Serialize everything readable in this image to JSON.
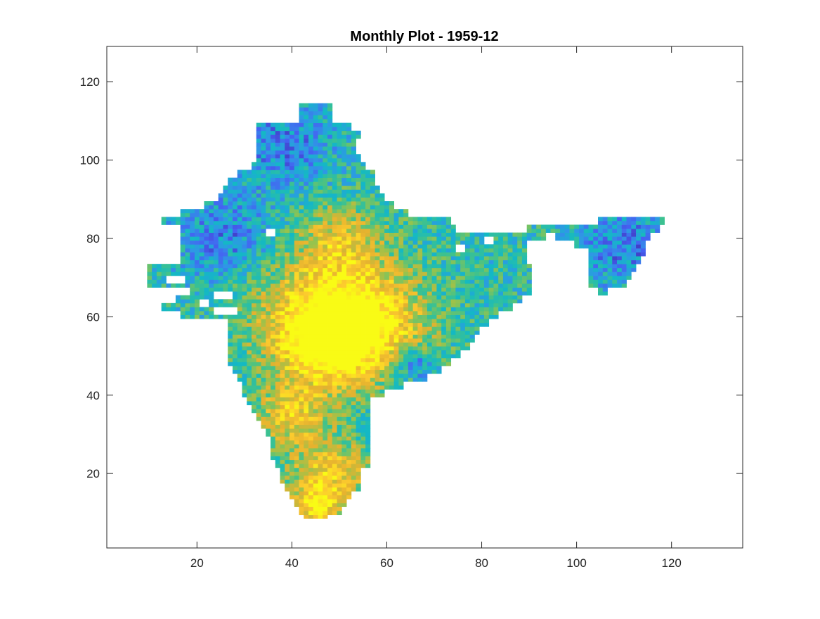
{
  "chart_data": {
    "type": "heatmap",
    "title": "Monthly Plot - 1959-12",
    "xlabel": "",
    "ylabel": "",
    "xlim": [
      1,
      135
    ],
    "ylim": [
      1,
      129
    ],
    "x_ticks": [
      20,
      40,
      60,
      80,
      100,
      120
    ],
    "y_ticks": [
      20,
      40,
      60,
      80,
      100,
      120
    ],
    "grid": false,
    "colorbar": false,
    "colormap": "parula",
    "colormap_stops": [
      "#3e26a8",
      "#4561f2",
      "#2f97e6",
      "#13b9c4",
      "#40c28c",
      "#97c34d",
      "#e5b22f",
      "#fcca2e",
      "#f9fb15"
    ],
    "region_rows": [
      {
        "y": 113,
        "x0": 42,
        "x1": 45
      },
      {
        "y": 113,
        "x0": 47,
        "x1": 47
      },
      {
        "y": 111,
        "x0": 42,
        "x1": 47
      },
      {
        "y": 109,
        "x0": 33,
        "x1": 51
      },
      {
        "y": 107,
        "x0": 33,
        "x1": 53
      },
      {
        "y": 105,
        "x0": 33,
        "x1": 52
      },
      {
        "y": 103,
        "x0": 33,
        "x1": 52
      },
      {
        "y": 101,
        "x0": 33,
        "x1": 53
      },
      {
        "y": 99,
        "x0": 32,
        "x1": 54
      },
      {
        "y": 97,
        "x0": 29,
        "x1": 56
      },
      {
        "y": 95,
        "x0": 27,
        "x1": 56
      },
      {
        "y": 93,
        "x0": 26,
        "x1": 57
      },
      {
        "y": 91,
        "x0": 25,
        "x1": 58
      },
      {
        "y": 89,
        "x0": 22,
        "x1": 60
      },
      {
        "y": 87,
        "x0": 17,
        "x1": 63
      },
      {
        "y": 85,
        "x0": 13,
        "x1": 72
      },
      {
        "y": 85,
        "x0": 105,
        "x1": 117
      },
      {
        "y": 83,
        "x0": 17,
        "x1": 73
      },
      {
        "y": 83,
        "x0": 90,
        "x1": 116
      },
      {
        "y": 81,
        "x0": 17,
        "x1": 92
      },
      {
        "y": 81,
        "x0": 96,
        "x1": 114
      },
      {
        "y": 79,
        "x0": 17,
        "x1": 88
      },
      {
        "y": 79,
        "x0": 100,
        "x1": 113
      },
      {
        "y": 77,
        "x0": 17,
        "x1": 88
      },
      {
        "y": 77,
        "x0": 103,
        "x1": 113
      },
      {
        "y": 75,
        "x0": 17,
        "x1": 88
      },
      {
        "y": 75,
        "x0": 103,
        "x1": 112
      },
      {
        "y": 73,
        "x0": 10,
        "x1": 89
      },
      {
        "y": 73,
        "x0": 103,
        "x1": 111
      },
      {
        "y": 71,
        "x0": 10,
        "x1": 89
      },
      {
        "y": 71,
        "x0": 103,
        "x1": 110
      },
      {
        "y": 69,
        "x0": 10,
        "x1": 89
      },
      {
        "y": 69,
        "x0": 103,
        "x1": 109
      },
      {
        "y": 67,
        "x0": 19,
        "x1": 89
      },
      {
        "y": 67,
        "x0": 105,
        "x1": 105
      },
      {
        "y": 65,
        "x0": 16,
        "x1": 87
      },
      {
        "y": 63,
        "x0": 13,
        "x1": 85
      },
      {
        "y": 61,
        "x0": 17,
        "x1": 82
      },
      {
        "y": 59,
        "x0": 27,
        "x1": 80
      },
      {
        "y": 57,
        "x0": 27,
        "x1": 78
      },
      {
        "y": 55,
        "x0": 27,
        "x1": 77
      },
      {
        "y": 53,
        "x0": 27,
        "x1": 76
      },
      {
        "y": 51,
        "x0": 27,
        "x1": 74
      },
      {
        "y": 49,
        "x0": 27,
        "x1": 72
      },
      {
        "y": 47,
        "x0": 28,
        "x1": 70
      },
      {
        "y": 45,
        "x0": 29,
        "x1": 67
      },
      {
        "y": 43,
        "x0": 30,
        "x1": 62
      },
      {
        "y": 41,
        "x0": 30,
        "x1": 58
      },
      {
        "y": 39,
        "x0": 31,
        "x1": 55
      },
      {
        "y": 37,
        "x0": 32,
        "x1": 55
      },
      {
        "y": 35,
        "x0": 33,
        "x1": 55
      },
      {
        "y": 33,
        "x0": 34,
        "x1": 55
      },
      {
        "y": 31,
        "x0": 35,
        "x1": 55
      },
      {
        "y": 29,
        "x0": 36,
        "x1": 55
      },
      {
        "y": 27,
        "x0": 36,
        "x1": 55
      },
      {
        "y": 25,
        "x0": 36,
        "x1": 55
      },
      {
        "y": 23,
        "x0": 37,
        "x1": 55
      },
      {
        "y": 21,
        "x0": 38,
        "x1": 53
      },
      {
        "y": 19,
        "x0": 38,
        "x1": 53
      },
      {
        "y": 17,
        "x0": 39,
        "x1": 53
      },
      {
        "y": 15,
        "x0": 40,
        "x1": 51
      },
      {
        "y": 13,
        "x0": 41,
        "x1": 50
      },
      {
        "y": 11,
        "x0": 42,
        "x1": 49
      },
      {
        "y": 9,
        "x0": 43,
        "x1": 46
      }
    ],
    "holes": [
      {
        "x": 35,
        "y": 81,
        "w": 2,
        "h": 2
      },
      {
        "x": 75,
        "y": 77,
        "w": 2,
        "h": 2
      },
      {
        "x": 81,
        "y": 79,
        "w": 2,
        "h": 2
      },
      {
        "x": 14,
        "y": 69,
        "w": 4,
        "h": 2
      },
      {
        "x": 21,
        "y": 63,
        "w": 2,
        "h": 2
      },
      {
        "x": 24,
        "y": 65,
        "w": 4,
        "h": 2
      },
      {
        "x": 24,
        "y": 61,
        "w": 5,
        "h": 2
      }
    ],
    "hot_centers": [
      {
        "x": 47,
        "y": 62,
        "r": 12,
        "level": 0.85
      },
      {
        "x": 56,
        "y": 58,
        "r": 10,
        "level": 0.82
      },
      {
        "x": 47,
        "y": 52,
        "r": 8,
        "level": 0.83
      },
      {
        "x": 40,
        "y": 35,
        "r": 6,
        "level": 0.8
      },
      {
        "x": 48,
        "y": 20,
        "r": 7,
        "level": 0.82
      },
      {
        "x": 45,
        "y": 12,
        "r": 4,
        "level": 0.84
      },
      {
        "x": 50,
        "y": 80,
        "r": 7,
        "level": 0.7
      }
    ],
    "cold_centers": [
      {
        "x": 26,
        "y": 80,
        "r": 9,
        "level": 0.2
      },
      {
        "x": 38,
        "y": 104,
        "r": 8,
        "level": 0.2
      },
      {
        "x": 110,
        "y": 78,
        "r": 8,
        "level": 0.2
      },
      {
        "x": 66,
        "y": 48,
        "r": 3,
        "level": 0.08
      }
    ]
  }
}
